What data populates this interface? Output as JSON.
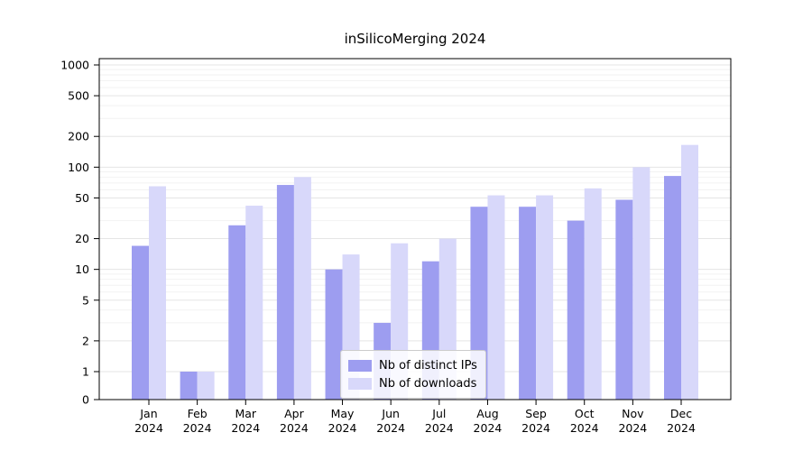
{
  "chart_data": {
    "type": "bar",
    "title": "inSilicoMerging 2024",
    "categories": [
      "Jan",
      "Feb",
      "Mar",
      "Apr",
      "May",
      "Jun",
      "Jul",
      "Aug",
      "Sep",
      "Oct",
      "Nov",
      "Dec"
    ],
    "category_year": "2024",
    "series": [
      {
        "name": "Nb of distinct IPs",
        "color": "#9d9df0",
        "values": [
          17,
          1,
          27,
          67,
          10,
          3,
          12,
          41,
          41,
          30,
          48,
          82
        ]
      },
      {
        "name": "Nb of downloads",
        "color": "#d8d8fa",
        "values": [
          65,
          1,
          42,
          80,
          14,
          18,
          20,
          53,
          53,
          62,
          100,
          165
        ]
      }
    ],
    "yticks": [
      0,
      1,
      2,
      5,
      10,
      20,
      50,
      100,
      200,
      500,
      1000
    ],
    "yscale": "symlog",
    "ylim": [
      0,
      1000
    ],
    "grid": true,
    "legend_position": "lower center",
    "colors": {
      "grid_major": "#e5e5e5",
      "grid_minor": "#f2f2f2",
      "axis": "#000000",
      "tick_text": "#000000"
    }
  }
}
